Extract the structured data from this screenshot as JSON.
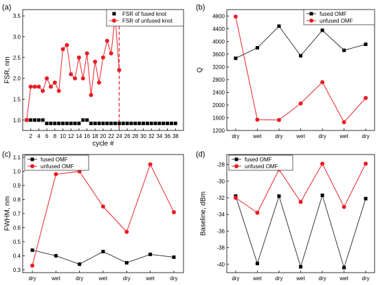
{
  "colors": {
    "fused": "#3a3a3a",
    "unfused": "#e8212a",
    "marker_fused": "#000000",
    "marker_unfused": "#e81d24",
    "vline": "#e8212a"
  },
  "chart_data": [
    {
      "panel_label": "(a)",
      "type": "scatter",
      "xlabel": "cycle #",
      "ylabel": "FSR, nm",
      "xlim": [
        0,
        40
      ],
      "ylim": [
        0.75,
        3.65
      ],
      "xticks": [
        2,
        4,
        6,
        8,
        10,
        12,
        14,
        16,
        18,
        20,
        22,
        24,
        26,
        28,
        30,
        32,
        34,
        36,
        38
      ],
      "xtick_labels": [
        "2",
        "4",
        "6",
        "8",
        "10",
        "12",
        "14",
        "16",
        "18",
        "20",
        "22",
        "24",
        "26",
        "28",
        "30",
        "32",
        "34",
        "36",
        "38"
      ],
      "yticks": [
        1.0,
        1.5,
        2.0,
        2.5,
        3.0,
        3.5
      ],
      "ytick_labels": [
        "1.0",
        "1.5",
        "2.0",
        "2.5",
        "3.0",
        "3.5"
      ],
      "vline_x": 24,
      "legend_position": "top-right",
      "series": [
        {
          "name": "FSR of fused knot",
          "marker": "square",
          "line": false,
          "x": [
            1,
            2,
            3,
            4,
            5,
            6,
            7,
            8,
            9,
            10,
            11,
            12,
            13,
            14,
            15,
            16,
            17,
            18,
            19,
            20,
            21,
            22,
            23,
            24,
            25,
            26,
            27,
            28,
            29,
            30,
            31,
            32,
            33,
            34,
            35,
            36,
            37,
            38
          ],
          "y": [
            1.0,
            1.0,
            1.0,
            1.0,
            1.0,
            0.92,
            0.92,
            0.92,
            0.92,
            0.92,
            0.92,
            0.92,
            0.92,
            0.92,
            1.0,
            1.0,
            0.92,
            0.92,
            0.92,
            0.92,
            0.92,
            0.92,
            0.92,
            0.92,
            0.92,
            0.92,
            0.92,
            0.92,
            0.92,
            0.92,
            0.92,
            0.92,
            0.92,
            0.92,
            0.92,
            0.92,
            0.92,
            0.92
          ]
        },
        {
          "name": "FSR of unfused knot",
          "marker": "circle",
          "line": true,
          "x": [
            1,
            2,
            3,
            4,
            5,
            6,
            7,
            8,
            9,
            10,
            11,
            12,
            13,
            14,
            15,
            16,
            17,
            18,
            19,
            20,
            21,
            22,
            23,
            24
          ],
          "y": [
            1.0,
            1.8,
            1.8,
            1.8,
            1.7,
            2.0,
            1.8,
            1.9,
            1.7,
            2.7,
            2.8,
            2.1,
            2.0,
            2.5,
            2.0,
            2.6,
            1.6,
            2.4,
            1.9,
            2.5,
            2.9,
            2.6,
            3.5,
            2.2
          ]
        }
      ]
    },
    {
      "panel_label": "(b)",
      "type": "line",
      "xlabel": "",
      "ylabel": "Q",
      "categories": [
        "dry",
        "wet",
        "dry",
        "wet",
        "dry",
        "wet",
        "dry"
      ],
      "ylim": [
        1200,
        5000
      ],
      "yticks": [
        1200,
        1600,
        2000,
        2400,
        2800,
        3200,
        3600,
        4000,
        4400,
        4800
      ],
      "ytick_labels": [
        "1200",
        "1600",
        "2000",
        "2400",
        "2800",
        "3200",
        "3600",
        "4000",
        "4400",
        "4800"
      ],
      "legend_position": "top-right",
      "series": [
        {
          "name": "fused OMF",
          "marker": "square",
          "values": [
            3470,
            3800,
            4480,
            3550,
            4350,
            3720,
            3910
          ]
        },
        {
          "name": "unfused OMF",
          "marker": "circle",
          "values": [
            4780,
            1540,
            1530,
            2050,
            2720,
            1460,
            2220
          ]
        }
      ]
    },
    {
      "panel_label": "(c)",
      "type": "line",
      "xlabel": "",
      "ylabel": "FWHM, nm",
      "categories": [
        "dry",
        "wet",
        "dry",
        "wet",
        "dry",
        "wet",
        "dry"
      ],
      "ylim": [
        0.28,
        1.12
      ],
      "yticks": [
        0.3,
        0.4,
        0.5,
        0.6,
        0.7,
        0.8,
        0.9,
        1.0,
        1.1
      ],
      "ytick_labels": [
        "0.3",
        "0.4",
        "0.5",
        "0.6",
        "0.7",
        "0.8",
        "0.9",
        "1.0",
        "1.1"
      ],
      "legend_position": "top-left",
      "series": [
        {
          "name": "fused OMF",
          "marker": "square",
          "values": [
            0.44,
            0.4,
            0.34,
            0.43,
            0.35,
            0.41,
            0.39
          ]
        },
        {
          "name": "unfused OMF",
          "marker": "circle",
          "values": [
            0.33,
            0.98,
            1.0,
            0.75,
            0.57,
            1.05,
            0.71
          ]
        }
      ]
    },
    {
      "panel_label": "(d)",
      "type": "line",
      "xlabel": "",
      "ylabel": "Baseline, dBm",
      "categories": [
        "dry",
        "wet",
        "dry",
        "wet",
        "dry",
        "wet",
        "dry"
      ],
      "ylim": [
        -41,
        -26.8
      ],
      "yticks": [
        -40,
        -38,
        -36,
        -34,
        -32,
        -30,
        -28
      ],
      "ytick_labels": [
        "-40",
        "-38",
        "-36",
        "-34",
        "-32",
        "-30",
        "-28"
      ],
      "legend_position": "top-left",
      "series": [
        {
          "name": "fused OMF",
          "marker": "square",
          "values": [
            -31.8,
            -39.9,
            -31.8,
            -40.3,
            -31.7,
            -40.4,
            -32.1
          ]
        },
        {
          "name": "unfused OMF",
          "marker": "circle",
          "values": [
            -32.0,
            -33.8,
            -28.6,
            -32.5,
            -27.9,
            -33.1,
            -27.9
          ]
        }
      ]
    }
  ]
}
